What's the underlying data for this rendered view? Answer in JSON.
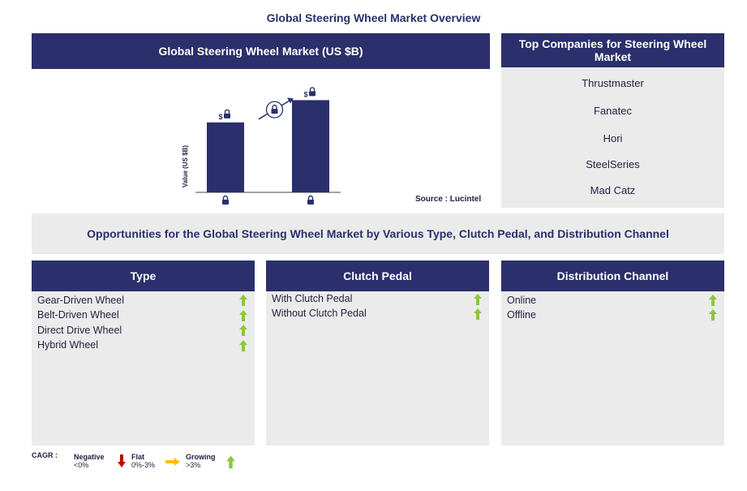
{
  "title": "Global Steering Wheel Market Overview",
  "market_chart": {
    "header": "Global Steering Wheel Market (US $B)",
    "source": "Source : Lucintel"
  },
  "chart_data": {
    "type": "bar",
    "categories": [
      "",
      ""
    ],
    "values": [
      88,
      116
    ],
    "value_labels": [
      "$",
      "$"
    ],
    "ylabel": "Value (US $B)",
    "xlabel": "",
    "ylim": [
      0,
      145
    ],
    "grid": false,
    "locked": true
  },
  "companies": {
    "header": "Top Companies for Steering Wheel Market",
    "items": [
      "Thrustmaster",
      "Fanatec",
      "Hori",
      "SteelSeries",
      "Mad Catz"
    ]
  },
  "opportunities": {
    "title": "Opportunities for the Global Steering Wheel Market by Various Type, Clutch Pedal, and Distribution Channel"
  },
  "segments": {
    "type": {
      "header": "Type",
      "items": [
        "Gear-Driven Wheel",
        "Belt-Driven Wheel",
        "Direct Drive Wheel",
        "Hybrid Wheel"
      ]
    },
    "clutch_pedal": {
      "header": "Clutch Pedal",
      "items": [
        "With Clutch Pedal",
        "Without Clutch Pedal"
      ]
    },
    "distribution_channel": {
      "header": "Distribution Channel",
      "items": [
        "Online",
        "Offline"
      ]
    }
  },
  "legend": {
    "cagr_label": "CAGR :",
    "negative": "Negative",
    "negative_range": "<0%",
    "flat": "Flat",
    "flat_range": "0%-3%",
    "growing": "Growing",
    "growing_range": ">3%"
  },
  "colors": {
    "navy": "#2b2f6b",
    "panel_gray": "#ebebeb",
    "growing_green": "#8cc63f",
    "negative_red": "#c00000",
    "flat_orange": "#ffc000"
  }
}
